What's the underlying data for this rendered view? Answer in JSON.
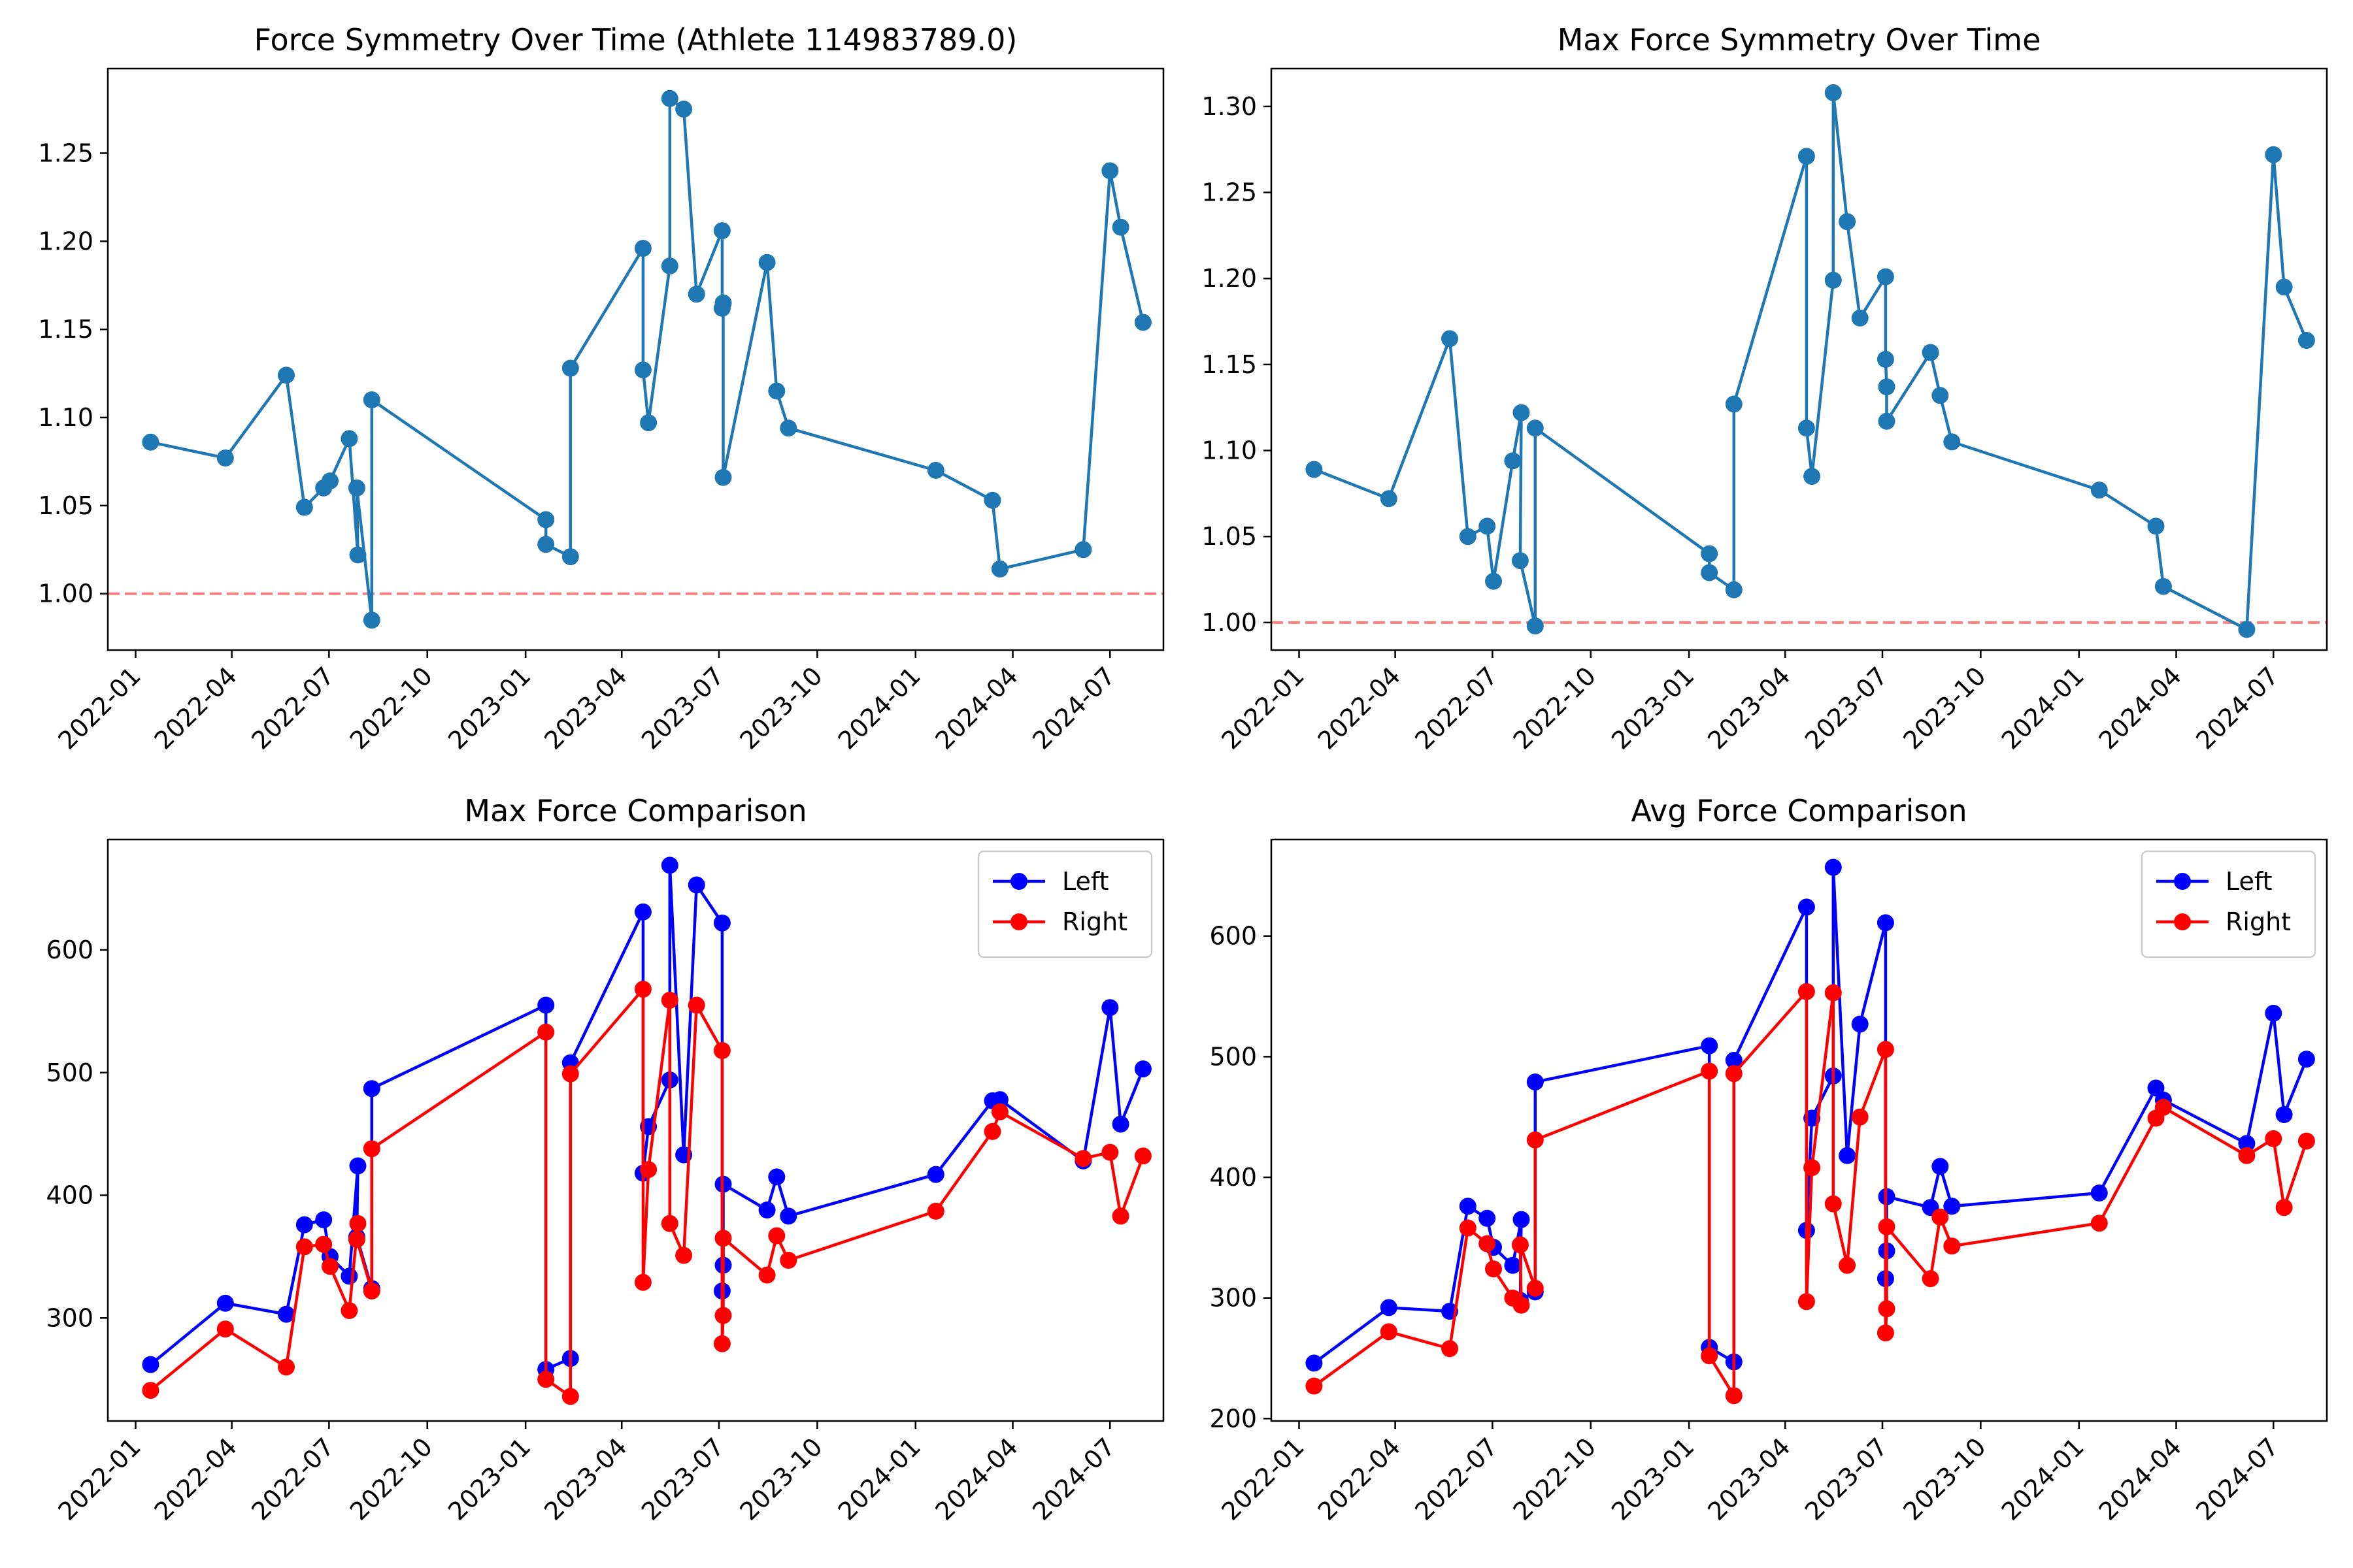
{
  "figure": {
    "background": "#ffffff"
  },
  "chart_data": [
    {
      "type": "line",
      "title": "Force Symmetry Over Time (Athlete 114983789.0)",
      "xlabel": "",
      "ylabel": "",
      "x_axis": "date",
      "xlim": [
        "2021-12-06",
        "2024-08-20"
      ],
      "ylim": [
        0.968,
        1.298
      ],
      "x_ticks": [
        "2022-01-01",
        "2022-04-01",
        "2022-07-01",
        "2022-10-01",
        "2023-01-01",
        "2023-04-01",
        "2023-07-01",
        "2023-10-01",
        "2024-01-01",
        "2024-04-01",
        "2024-07-01"
      ],
      "x_tick_labels": [
        "2022-01",
        "2022-04",
        "2022-07",
        "2022-10",
        "2023-01",
        "2023-04",
        "2023-07",
        "2023-10",
        "2024-01",
        "2024-04",
        "2024-07"
      ],
      "y_ticks": [
        1.0,
        1.05,
        1.1,
        1.15,
        1.2,
        1.25
      ],
      "y_tick_labels": [
        "1.00",
        "1.05",
        "1.10",
        "1.15",
        "1.20",
        "1.25"
      ],
      "reference_line": {
        "y": 1.0,
        "color": "#ff0000",
        "style": "dashed"
      },
      "grid": false,
      "series": [
        {
          "color": "#1f77b4",
          "marker": "circle",
          "x": [
            "2022-01-15",
            "2022-03-26",
            "2022-05-22",
            "2022-06-08",
            "2022-06-26",
            "2022-07-02",
            "2022-07-20",
            "2022-07-28",
            "2022-07-27",
            "2022-08-10",
            "2022-08-10",
            "2023-01-20",
            "2023-01-20",
            "2023-02-12",
            "2023-02-12",
            "2023-04-21",
            "2023-04-21",
            "2023-04-26",
            "2023-05-16",
            "2023-05-16",
            "2023-05-29",
            "2023-06-10",
            "2023-07-04",
            "2023-07-04",
            "2023-07-05",
            "2023-07-05",
            "2023-08-15",
            "2023-08-24",
            "2023-09-04",
            "2024-01-20",
            "2024-03-13",
            "2024-03-20",
            "2024-06-06",
            "2024-07-01",
            "2024-07-11",
            "2024-08-01"
          ],
          "y": [
            1.086,
            1.077,
            1.124,
            1.049,
            1.06,
            1.064,
            1.088,
            1.022,
            1.06,
            0.985,
            1.11,
            1.042,
            1.028,
            1.021,
            1.128,
            1.196,
            1.127,
            1.097,
            1.186,
            1.281,
            1.275,
            1.17,
            1.206,
            1.162,
            1.165,
            1.066,
            1.188,
            1.115,
            1.094,
            1.07,
            1.053,
            1.014,
            1.025,
            1.24,
            1.208,
            1.154
          ]
        }
      ]
    },
    {
      "type": "line",
      "title": "Max Force Symmetry Over Time",
      "xlabel": "",
      "ylabel": "",
      "x_axis": "date",
      "xlim": [
        "2021-12-06",
        "2024-08-20"
      ],
      "ylim": [
        0.984,
        1.322
      ],
      "x_ticks": [
        "2022-01-01",
        "2022-04-01",
        "2022-07-01",
        "2022-10-01",
        "2023-01-01",
        "2023-04-01",
        "2023-07-01",
        "2023-10-01",
        "2024-01-01",
        "2024-04-01",
        "2024-07-01"
      ],
      "x_tick_labels": [
        "2022-01",
        "2022-04",
        "2022-07",
        "2022-10",
        "2023-01",
        "2023-04",
        "2023-07",
        "2023-10",
        "2024-01",
        "2024-04",
        "2024-07"
      ],
      "y_ticks": [
        1.0,
        1.05,
        1.1,
        1.15,
        1.2,
        1.25,
        1.3
      ],
      "y_tick_labels": [
        "1.00",
        "1.05",
        "1.10",
        "1.15",
        "1.20",
        "1.25",
        "1.30"
      ],
      "reference_line": {
        "y": 1.0,
        "color": "#ff0000",
        "style": "dashed"
      },
      "grid": false,
      "series": [
        {
          "color": "#1f77b4",
          "marker": "circle",
          "x": [
            "2022-01-15",
            "2022-03-26",
            "2022-05-22",
            "2022-06-08",
            "2022-06-26",
            "2022-07-02",
            "2022-07-20",
            "2022-07-28",
            "2022-07-27",
            "2022-08-10",
            "2022-08-10",
            "2023-01-20",
            "2023-01-20",
            "2023-02-12",
            "2023-02-12",
            "2023-04-21",
            "2023-04-21",
            "2023-04-26",
            "2023-05-16",
            "2023-05-16",
            "2023-05-29",
            "2023-06-10",
            "2023-07-04",
            "2023-07-04",
            "2023-07-05",
            "2023-07-05",
            "2023-08-15",
            "2023-08-24",
            "2023-09-04",
            "2024-01-20",
            "2024-03-13",
            "2024-03-20",
            "2024-06-06",
            "2024-07-01",
            "2024-07-11",
            "2024-08-01"
          ],
          "y": [
            1.089,
            1.072,
            1.165,
            1.05,
            1.056,
            1.024,
            1.094,
            1.122,
            1.036,
            0.998,
            1.113,
            1.04,
            1.029,
            1.019,
            1.127,
            1.271,
            1.113,
            1.085,
            1.199,
            1.308,
            1.233,
            1.177,
            1.201,
            1.153,
            1.137,
            1.117,
            1.157,
            1.132,
            1.105,
            1.077,
            1.056,
            1.021,
            0.996,
            1.272,
            1.195,
            1.164
          ]
        }
      ]
    },
    {
      "type": "line",
      "title": "Max Force Comparison",
      "xlabel": "",
      "ylabel": "",
      "x_axis": "date",
      "xlim": [
        "2021-12-06",
        "2024-08-20"
      ],
      "ylim": [
        216,
        690
      ],
      "x_ticks": [
        "2022-01-01",
        "2022-04-01",
        "2022-07-01",
        "2022-10-01",
        "2023-01-01",
        "2023-04-01",
        "2023-07-01",
        "2023-10-01",
        "2024-01-01",
        "2024-04-01",
        "2024-07-01"
      ],
      "x_tick_labels": [
        "2022-01",
        "2022-04",
        "2022-07",
        "2022-10",
        "2023-01",
        "2023-04",
        "2023-07",
        "2023-10",
        "2024-01",
        "2024-04",
        "2024-07"
      ],
      "y_ticks": [
        300,
        400,
        500,
        600
      ],
      "y_tick_labels": [
        "300",
        "400",
        "500",
        "600"
      ],
      "grid": false,
      "legend": {
        "position": "upper-right"
      },
      "series": [
        {
          "name": "Left",
          "color": "#0000ff",
          "marker": "circle",
          "x": [
            "2022-01-15",
            "2022-03-26",
            "2022-05-22",
            "2022-06-08",
            "2022-06-26",
            "2022-07-02",
            "2022-07-20",
            "2022-07-28",
            "2022-07-27",
            "2022-08-10",
            "2022-08-10",
            "2023-01-20",
            "2023-01-20",
            "2023-02-12",
            "2023-02-12",
            "2023-04-21",
            "2023-04-21",
            "2023-04-26",
            "2023-05-16",
            "2023-05-16",
            "2023-05-29",
            "2023-06-10",
            "2023-07-04",
            "2023-07-04",
            "2023-07-05",
            "2023-07-05",
            "2023-08-15",
            "2023-08-24",
            "2023-09-04",
            "2024-01-20",
            "2024-03-13",
            "2024-03-20",
            "2024-06-06",
            "2024-07-01",
            "2024-07-11",
            "2024-08-01"
          ],
          "y": [
            262,
            312,
            303,
            376,
            380,
            350,
            334,
            424,
            366,
            324,
            487,
            555,
            258,
            267,
            508,
            631,
            418,
            456,
            494,
            669,
            433,
            653,
            622,
            322,
            343,
            409,
            388,
            415,
            383,
            417,
            477,
            478,
            428,
            553,
            458,
            503
          ]
        },
        {
          "name": "Right",
          "color": "#ff0000",
          "marker": "circle",
          "x": [
            "2022-01-15",
            "2022-03-26",
            "2022-05-22",
            "2022-06-08",
            "2022-06-26",
            "2022-07-02",
            "2022-07-20",
            "2022-07-28",
            "2022-07-27",
            "2022-08-10",
            "2022-08-10",
            "2023-01-20",
            "2023-01-20",
            "2023-02-12",
            "2023-02-12",
            "2023-04-21",
            "2023-04-21",
            "2023-04-26",
            "2023-05-16",
            "2023-05-16",
            "2023-05-29",
            "2023-06-10",
            "2023-07-04",
            "2023-07-04",
            "2023-07-05",
            "2023-07-05",
            "2023-08-15",
            "2023-08-24",
            "2023-09-04",
            "2024-01-20",
            "2024-03-13",
            "2024-03-20",
            "2024-06-06",
            "2024-07-01",
            "2024-07-11",
            "2024-08-01"
          ],
          "y": [
            241,
            291,
            260,
            358,
            360,
            342,
            306,
            377,
            364,
            322,
            438,
            533,
            250,
            236,
            499,
            568,
            329,
            421,
            559,
            377,
            351,
            555,
            518,
            279,
            302,
            365,
            335,
            367,
            347,
            387,
            452,
            468,
            430,
            435,
            383,
            432
          ]
        }
      ]
    },
    {
      "type": "line",
      "title": "Avg Force Comparison",
      "xlabel": "",
      "ylabel": "",
      "x_axis": "date",
      "xlim": [
        "2021-12-06",
        "2024-08-20"
      ],
      "ylim": [
        198,
        680
      ],
      "x_ticks": [
        "2022-01-01",
        "2022-04-01",
        "2022-07-01",
        "2022-10-01",
        "2023-01-01",
        "2023-04-01",
        "2023-07-01",
        "2023-10-01",
        "2024-01-01",
        "2024-04-01",
        "2024-07-01"
      ],
      "x_tick_labels": [
        "2022-01",
        "2022-04",
        "2022-07",
        "2022-10",
        "2023-01",
        "2023-04",
        "2023-07",
        "2023-10",
        "2024-01",
        "2024-04",
        "2024-07"
      ],
      "y_ticks": [
        200,
        300,
        400,
        500,
        600
      ],
      "y_tick_labels": [
        "200",
        "300",
        "400",
        "500",
        "600"
      ],
      "grid": false,
      "legend": {
        "position": "upper-right"
      },
      "series": [
        {
          "name": "Left",
          "color": "#0000ff",
          "marker": "circle",
          "x": [
            "2022-01-15",
            "2022-03-26",
            "2022-05-22",
            "2022-06-08",
            "2022-06-26",
            "2022-07-02",
            "2022-07-20",
            "2022-07-28",
            "2022-07-27",
            "2022-08-10",
            "2022-08-10",
            "2023-01-20",
            "2023-01-20",
            "2023-02-12",
            "2023-02-12",
            "2023-04-21",
            "2023-04-21",
            "2023-04-26",
            "2023-05-16",
            "2023-05-16",
            "2023-05-29",
            "2023-06-10",
            "2023-07-04",
            "2023-07-04",
            "2023-07-05",
            "2023-07-05",
            "2023-08-15",
            "2023-08-24",
            "2023-09-04",
            "2024-01-20",
            "2024-03-13",
            "2024-03-20",
            "2024-06-06",
            "2024-07-01",
            "2024-07-11",
            "2024-08-01"
          ],
          "y": [
            246,
            292,
            289,
            376,
            366,
            342,
            327,
            365,
            298,
            305,
            479,
            509,
            259,
            247,
            497,
            624,
            356,
            449,
            484,
            657,
            418,
            527,
            611,
            316,
            339,
            384,
            375,
            409,
            376,
            387,
            474,
            464,
            428,
            536,
            452,
            498
          ]
        },
        {
          "name": "Right",
          "color": "#ff0000",
          "marker": "circle",
          "x": [
            "2022-01-15",
            "2022-03-26",
            "2022-05-22",
            "2022-06-08",
            "2022-06-26",
            "2022-07-02",
            "2022-07-20",
            "2022-07-28",
            "2022-07-27",
            "2022-08-10",
            "2022-08-10",
            "2023-01-20",
            "2023-01-20",
            "2023-02-12",
            "2023-02-12",
            "2023-04-21",
            "2023-04-21",
            "2023-04-26",
            "2023-05-16",
            "2023-05-16",
            "2023-05-29",
            "2023-06-10",
            "2023-07-04",
            "2023-07-04",
            "2023-07-05",
            "2023-07-05",
            "2023-08-15",
            "2023-08-24",
            "2023-09-04",
            "2024-01-20",
            "2024-03-13",
            "2024-03-20",
            "2024-06-06",
            "2024-07-01",
            "2024-07-11",
            "2024-08-01"
          ],
          "y": [
            227,
            272,
            258,
            358,
            345,
            324,
            300,
            294,
            344,
            308,
            431,
            488,
            252,
            219,
            486,
            554,
            297,
            408,
            553,
            378,
            327,
            450,
            506,
            271,
            291,
            359,
            316,
            367,
            343,
            362,
            449,
            458,
            418,
            432,
            375,
            430
          ]
        }
      ]
    }
  ]
}
